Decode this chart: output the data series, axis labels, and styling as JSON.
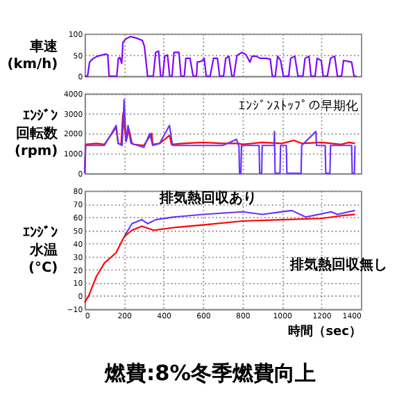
{
  "chart_data": [
    {
      "type": "line",
      "ylabel": "車速(km/h)",
      "xlim": [
        0,
        1400
      ],
      "xticks": [
        0,
        200,
        400,
        600,
        800,
        1000,
        1200,
        1400
      ],
      "ylim": [
        0,
        100
      ],
      "yticks": [
        0,
        50,
        100
      ],
      "grid": true,
      "tick_labels": "y",
      "legend": false,
      "series": [
        {
          "color": "#7f00ff",
          "x": [
            0,
            15,
            25,
            35,
            45,
            65,
            107,
            117,
            124,
            163,
            171,
            179,
            188,
            194,
            210,
            231,
            262,
            293,
            303,
            319,
            348,
            360,
            375,
            385,
            396,
            406,
            420,
            431,
            443,
            453,
            478,
            488,
            505,
            513,
            534,
            550,
            567,
            571,
            591,
            606,
            616,
            636,
            653,
            673,
            684,
            704,
            715,
            731,
            746,
            756,
            772,
            797,
            817,
            838,
            848,
            869,
            889,
            920,
            941,
            951,
            966,
            978,
            993,
            1007,
            1034,
            1044,
            1065,
            1081,
            1106,
            1117,
            1137,
            1147,
            1168,
            1178,
            1199,
            1209,
            1230,
            1246,
            1267,
            1281,
            1302,
            1312,
            1353,
            1365,
            1378
          ],
          "values": [
            0,
            0,
            33,
            38,
            42,
            47,
            52,
            50,
            0,
            0,
            42,
            44,
            30,
            80,
            88,
            93,
            90,
            84,
            70,
            0,
            0,
            56,
            59,
            0,
            0,
            47,
            50,
            0,
            0,
            56,
            56,
            0,
            0,
            42,
            42,
            0,
            0,
            33,
            35,
            42,
            0,
            0,
            42,
            42,
            0,
            0,
            42,
            47,
            0,
            0,
            49,
            56,
            51,
            33,
            47,
            47,
            42,
            42,
            40,
            0,
            0,
            47,
            37,
            0,
            0,
            42,
            47,
            0,
            0,
            42,
            47,
            0,
            0,
            42,
            37,
            0,
            0,
            42,
            47,
            0,
            0,
            37,
            33,
            0,
            0
          ]
        }
      ]
    },
    {
      "type": "line",
      "ylabel": "ｴﾝｼﾞﾝ回転数(rpm)",
      "xlim": [
        0,
        1400
      ],
      "xticks": [
        0,
        200,
        400,
        600,
        800,
        1000,
        1200,
        1400
      ],
      "ylim": [
        0,
        4000
      ],
      "yticks": [
        0,
        1000,
        2000,
        3000,
        4000
      ],
      "grid": true,
      "tick_labels": "y",
      "legend": false,
      "annotations": [
        "ｴﾝｼﾞﾝｽﾄｯﾌﾟの早期化"
      ],
      "series": [
        {
          "color": "#ff0000",
          "x": [
            0,
            5,
            60,
            100,
            160,
            170,
            185,
            194,
            210,
            225,
            240,
            250,
            300,
            340,
            345,
            380,
            430,
            440,
            500,
            600,
            700,
            780,
            800,
            900,
            1000,
            1060,
            1100,
            1200,
            1250,
            1300,
            1340,
            1370
          ],
          "values": [
            0,
            1450,
            1500,
            1450,
            2300,
            1500,
            1450,
            3000,
            1600,
            2200,
            1500,
            1450,
            1400,
            2000,
            1450,
            1500,
            1900,
            1450,
            1500,
            1550,
            1500,
            1500,
            1450,
            1550,
            1500,
            1650,
            1500,
            1550,
            1500,
            1450,
            1550,
            1500
          ]
        },
        {
          "color": "#6633ff",
          "x": [
            0,
            5,
            100,
            160,
            170,
            190,
            200,
            210,
            220,
            235,
            300,
            330,
            345,
            380,
            430,
            445,
            500,
            600,
            700,
            770,
            780,
            782,
            785,
            792,
            795,
            884,
            887,
            897,
            900,
            960,
            962,
            965,
            990,
            993,
            1022,
            1025,
            1097,
            1100,
            1172,
            1175,
            1219,
            1222,
            1243,
            1246,
            1300,
            1353,
            1356,
            1367,
            1370
          ],
          "values": [
            0,
            1400,
            1400,
            2400,
            1500,
            1400,
            3700,
            1600,
            2400,
            1500,
            1300,
            2000,
            1400,
            1500,
            2400,
            1400,
            1400,
            1400,
            1400,
            1700,
            1400,
            1400,
            0,
            0,
            1400,
            1400,
            0,
            0,
            1400,
            1400,
            2100,
            0,
            0,
            1400,
            1400,
            0,
            0,
            1400,
            2100,
            1400,
            1400,
            0,
            0,
            1400,
            1400,
            1400,
            0,
            0,
            1400
          ]
        }
      ]
    },
    {
      "type": "line",
      "ylabel": "ｴﾝｼﾞﾝ水温(°C)",
      "xlabel": "時間（sec）",
      "xlim": [
        0,
        1400
      ],
      "xticks": [
        0,
        200,
        400,
        600,
        800,
        1000,
        1200,
        1400
      ],
      "ylim": [
        -10,
        80
      ],
      "yticks": [
        -10,
        0,
        10,
        20,
        30,
        40,
        50,
        60,
        70,
        80
      ],
      "grid": true,
      "legend": false,
      "annotations": [
        "燃費:8%冬季燃費向上"
      ],
      "series": [
        {
          "name": "排気熱回収あり",
          "color": "#6633ff",
          "x": [
            200,
            240,
            290,
            320,
            360,
            450,
            600,
            800,
            900,
            1050,
            1120,
            1250,
            1280,
            1370
          ],
          "values": [
            45,
            55,
            58,
            55,
            58,
            60,
            62,
            64,
            62,
            65,
            60,
            64,
            62,
            65
          ]
        },
        {
          "name": "排気熱回収無し",
          "color": "#ff0000",
          "x": [
            0,
            20,
            60,
            100,
            160,
            200,
            240,
            290,
            350,
            450,
            600,
            800,
            1000,
            1200,
            1300,
            1370
          ],
          "values": [
            -5,
            0,
            15,
            25,
            33,
            45,
            50,
            53,
            50,
            52,
            54,
            57,
            58,
            59,
            61,
            62
          ]
        }
      ]
    }
  ]
}
